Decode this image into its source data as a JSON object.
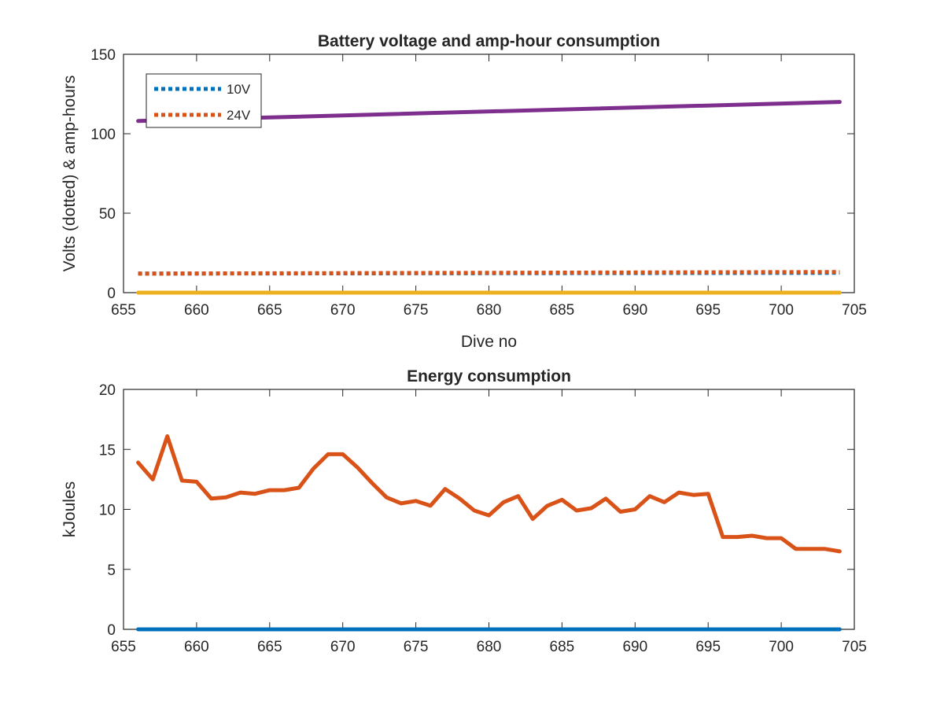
{
  "colors": {
    "blue": "#0072BD",
    "orange": "#D95319",
    "yellow": "#EDB120",
    "purple": "#7E2F8E",
    "axis": "#262626"
  },
  "chart_data": [
    {
      "type": "line",
      "title": "Battery voltage and amp-hour consumption",
      "xlabel": "Dive no",
      "ylabel": "Volts (dotted) & amp-hours",
      "xlim": [
        655,
        705
      ],
      "ylim": [
        0,
        150
      ],
      "xticks": [
        655,
        660,
        665,
        670,
        675,
        680,
        685,
        690,
        695,
        700,
        705
      ],
      "yticks": [
        0,
        50,
        100,
        150
      ],
      "legend_position": "top-left",
      "grid": false,
      "series": [
        {
          "name": "10V",
          "style": "dotted",
          "color": "#0072BD",
          "x": [
            656,
            704
          ],
          "y": [
            12,
            12.5
          ]
        },
        {
          "name": "24V",
          "style": "dotted",
          "color": "#D95319",
          "x": [
            656,
            704
          ],
          "y": [
            12,
            13
          ]
        },
        {
          "style": "solid",
          "color": "#EDB120",
          "x": [
            656,
            704
          ],
          "y": [
            0,
            0
          ]
        },
        {
          "style": "solid",
          "color": "#7E2F8E",
          "x": [
            656,
            704
          ],
          "y": [
            108,
            120
          ]
        }
      ]
    },
    {
      "type": "line",
      "title": "Energy consumption",
      "xlabel": "",
      "ylabel": "kJoules",
      "xlim": [
        655,
        705
      ],
      "ylim": [
        0,
        20
      ],
      "xticks": [
        655,
        660,
        665,
        670,
        675,
        680,
        685,
        690,
        695,
        700,
        705
      ],
      "yticks": [
        0,
        5,
        10,
        15,
        20
      ],
      "grid": false,
      "series": [
        {
          "style": "solid",
          "color": "#D95319",
          "x": [
            656,
            657,
            658,
            659,
            660,
            661,
            662,
            663,
            664,
            665,
            666,
            667,
            668,
            669,
            670,
            671,
            672,
            673,
            674,
            675,
            676,
            677,
            678,
            679,
            680,
            681,
            682,
            683,
            684,
            685,
            686,
            687,
            688,
            689,
            690,
            691,
            692,
            693,
            694,
            695,
            696,
            697,
            698,
            699,
            700,
            701,
            702,
            703,
            704
          ],
          "y": [
            13.9,
            12.5,
            16.1,
            12.4,
            12.3,
            10.9,
            11.0,
            11.4,
            11.3,
            11.6,
            11.6,
            11.8,
            13.4,
            14.6,
            14.6,
            13.5,
            12.2,
            11.0,
            10.5,
            10.7,
            10.3,
            11.7,
            10.9,
            9.9,
            9.5,
            10.6,
            11.1,
            9.2,
            10.3,
            10.8,
            9.9,
            10.1,
            10.9,
            9.8,
            10.0,
            11.1,
            10.6,
            11.4,
            11.2,
            11.3,
            7.7,
            7.7,
            7.8,
            7.6,
            7.6,
            6.7,
            6.7,
            6.7,
            6.5
          ]
        },
        {
          "style": "solid",
          "color": "#0072BD",
          "x": [
            656,
            704
          ],
          "y": [
            0,
            0
          ]
        }
      ]
    }
  ]
}
